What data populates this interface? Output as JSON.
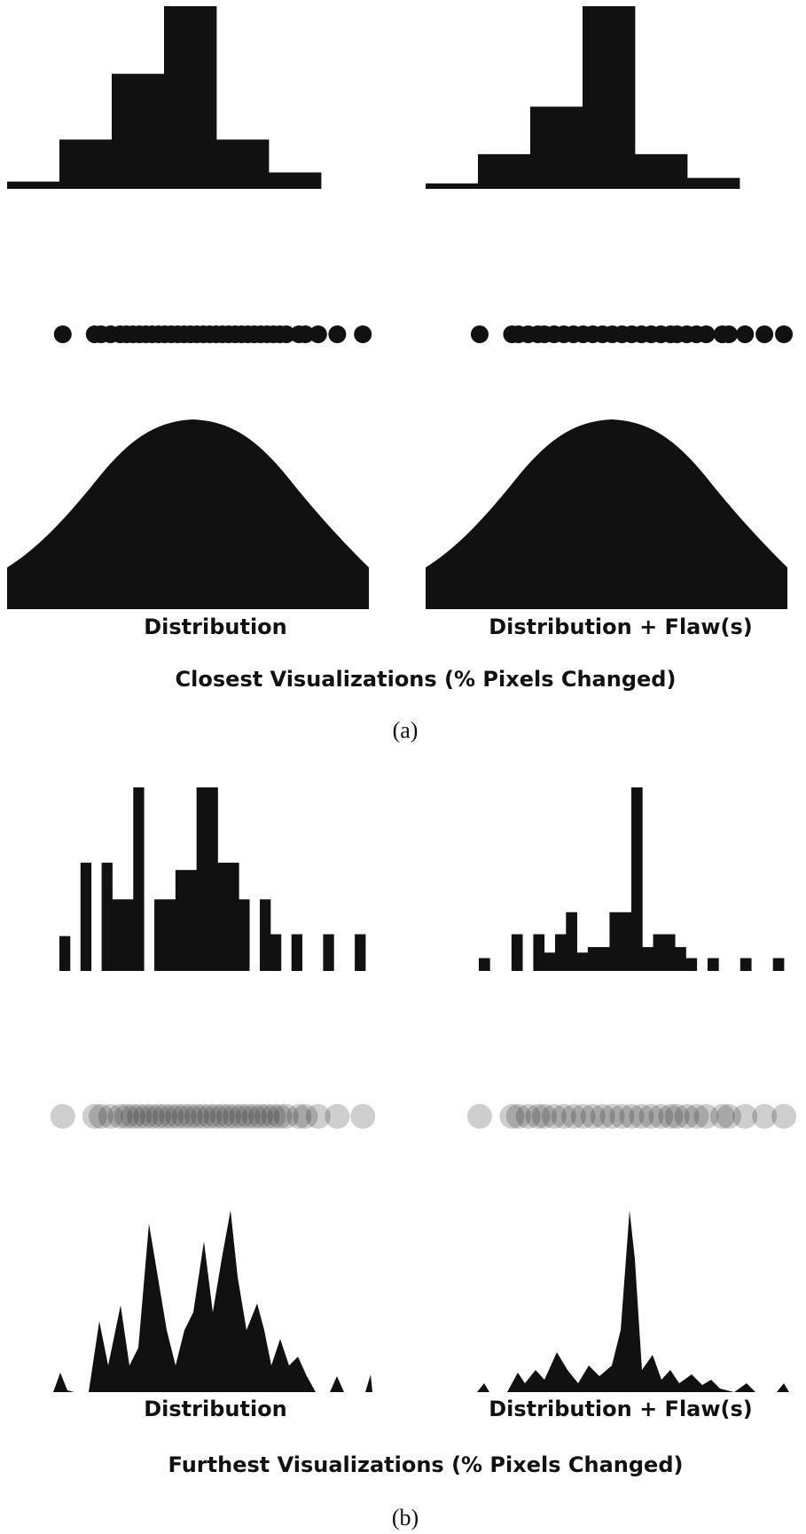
{
  "panels": [
    {
      "caption": "(a)",
      "title": "Closest Visualizations (% Pixels Changed)",
      "columns": [
        {
          "label": "Distribution"
        },
        {
          "label": "Distribution + Flaw(s)"
        }
      ]
    },
    {
      "caption": "(b)",
      "title": "Furthest Visualizations (% Pixels Changed)",
      "columns": [
        {
          "label": "Distribution"
        },
        {
          "label": "Distribution + Flaw(s)"
        }
      ]
    }
  ],
  "chart_data": [
    {
      "panel": "a",
      "column": "Distribution",
      "type": "bar",
      "values": [
        0.04,
        0.27,
        0.63,
        1.0,
        0.27,
        0.09
      ]
    },
    {
      "panel": "a",
      "column": "Distribution + Flaw(s)",
      "type": "bar",
      "values": [
        0.03,
        0.19,
        0.45,
        1.0,
        0.19,
        0.06
      ]
    },
    {
      "panel": "b",
      "column": "Distribution",
      "type": "bar",
      "values": [
        0.19,
        0,
        0.59,
        0,
        0.59,
        0.39,
        0.39,
        1.0,
        0,
        0.39,
        0.39,
        0.55,
        0.55,
        1.0,
        1.0,
        0.59,
        0.59,
        0.39,
        0,
        0.39,
        0.2,
        0,
        0.2,
        0,
        0,
        0.2,
        0,
        0,
        0.2
      ]
    },
    {
      "panel": "b",
      "column": "Distribution + Flaw(s)",
      "type": "bar",
      "values": [
        0.07,
        0,
        0,
        0.2,
        0,
        0.2,
        0.1,
        0.2,
        0.32,
        0.1,
        0.13,
        0.13,
        0.32,
        0.32,
        1.0,
        0.13,
        0.2,
        0.2,
        0.13,
        0.07,
        0,
        0.07,
        0,
        0,
        0.07,
        0,
        0,
        0.07
      ]
    }
  ],
  "dot_positions": {
    "a_distribution": [
      0.03,
      0.13,
      0.15,
      0.18,
      0.21,
      0.23,
      0.25,
      0.27,
      0.29,
      0.31,
      0.33,
      0.35,
      0.37,
      0.39,
      0.41,
      0.43,
      0.45,
      0.47,
      0.49,
      0.51,
      0.53,
      0.55,
      0.57,
      0.59,
      0.61,
      0.63,
      0.65,
      0.67,
      0.69,
      0.71,
      0.73,
      0.77,
      0.79,
      0.83,
      0.89,
      0.97
    ],
    "a_flaw": [
      0.03,
      0.13,
      0.15,
      0.18,
      0.21,
      0.23,
      0.26,
      0.29,
      0.32,
      0.35,
      0.38,
      0.41,
      0.44,
      0.47,
      0.5,
      0.53,
      0.56,
      0.59,
      0.62,
      0.64,
      0.67,
      0.7,
      0.73,
      0.78,
      0.8,
      0.85,
      0.91,
      0.97
    ]
  }
}
